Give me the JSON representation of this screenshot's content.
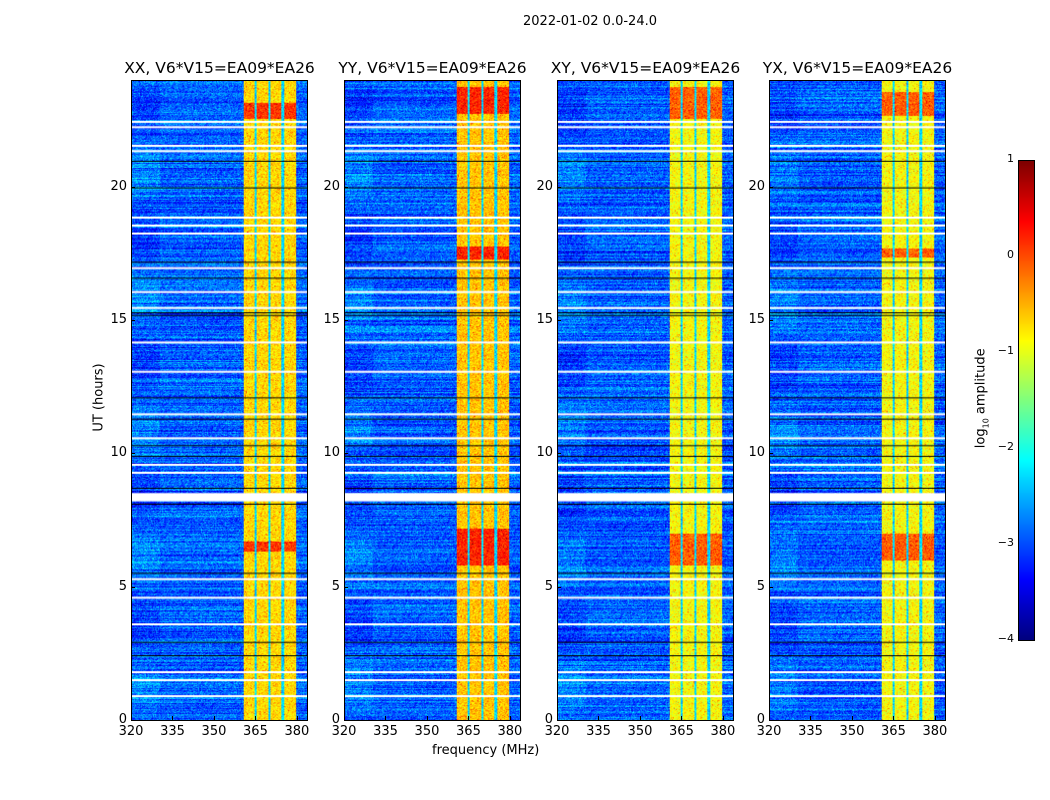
{
  "chart_data": {
    "type": "heatmap",
    "title": "2022-01-02 0.0-24.0",
    "xlabel": "frequency (MHz)",
    "ylabel": "UT (hours)",
    "xlim": [
      320,
      384
    ],
    "ylim": [
      0,
      24
    ],
    "xticks": [
      320,
      335,
      350,
      365,
      380
    ],
    "yticks": [
      0,
      5,
      10,
      15,
      20
    ],
    "colormap": "jet",
    "colorbar": {
      "label_main": "log",
      "label_sub": "10",
      "label_rest": " amplitude",
      "range": [
        -4,
        1
      ],
      "ticks": [
        1,
        0,
        -1,
        -2,
        -3,
        -4
      ]
    },
    "panels": [
      {
        "title": "XX, V6*V15=EA09*EA26",
        "bright_level": -0.7,
        "hot_hours": [
          [
            6.3,
            6.7
          ],
          [
            22.6,
            23.2
          ]
        ]
      },
      {
        "title": "YY, V6*V15=EA09*EA26",
        "bright_level": -0.6,
        "hot_hours": [
          [
            5.8,
            7.2
          ],
          [
            17.3,
            17.8
          ],
          [
            22.8,
            23.8
          ]
        ]
      },
      {
        "title": "XY, V6*V15=EA09*EA26",
        "bright_level": -0.9,
        "hot_hours": [
          [
            5.8,
            7.0
          ],
          [
            22.6,
            23.8
          ]
        ]
      },
      {
        "title": "YX, V6*V15=EA09*EA26",
        "bright_level": -0.9,
        "hot_hours": [
          [
            6.0,
            7.0
          ],
          [
            17.4,
            17.7
          ],
          [
            22.7,
            23.6
          ]
        ]
      }
    ],
    "background_level": -2.9,
    "rfi_band_mhz": [
      360.5,
      380
    ],
    "rfi_gaps_mhz": [
      365,
      370,
      375
    ],
    "flagged_hours": [
      0.9,
      1.5,
      1.8,
      3.6,
      4.6,
      5.3,
      8.3,
      8.5,
      9.3,
      9.6,
      10.6,
      11.5,
      13.1,
      14.2,
      15.5,
      16.1,
      17.0,
      18.3,
      18.6,
      18.9,
      21.4,
      21.6,
      22.3,
      22.5
    ],
    "dark_hours": [
      2.4,
      2.9,
      5.5,
      8.1,
      8.7,
      9.9,
      10.3,
      11.3,
      12.1,
      15.2,
      15.3,
      16.6,
      17.2,
      20.0,
      21.0
    ]
  }
}
